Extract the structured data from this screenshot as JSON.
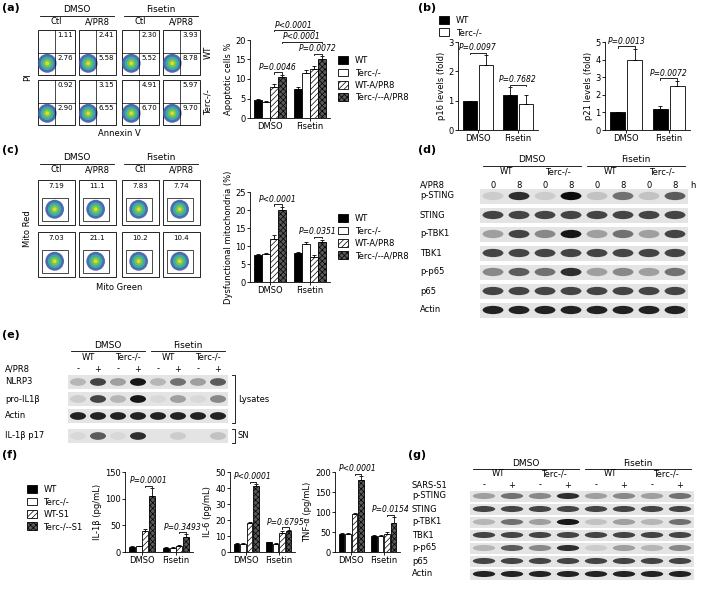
{
  "panel_labels": [
    "(a)",
    "(b)",
    "(c)",
    "(d)",
    "(e)",
    "(f)",
    "(g)"
  ],
  "chart_data": [
    {
      "type": "bar",
      "ylabel": "Apoptotic cells %",
      "categories": [
        "DMSO",
        "Fisetin"
      ],
      "ylim": [
        0,
        20
      ],
      "yticks": [
        0,
        5,
        10,
        15,
        20
      ],
      "legend": "right",
      "series": [
        {
          "name": "WT",
          "color": "#000000",
          "values": [
            4.5,
            7.5
          ],
          "errors": [
            0.5,
            0.5
          ]
        },
        {
          "name": "Terc-/-",
          "color": "#ffffff",
          "values": [
            4.0,
            11.5
          ],
          "errors": [
            0.4,
            0.8
          ]
        },
        {
          "name": "WT-A/PR8",
          "color": "#ffffff",
          "values": [
            8.0,
            12.5
          ],
          "errors": [
            0.8,
            0.8
          ]
        },
        {
          "name": "Terc-/--A/PR8",
          "color": "#595959",
          "values": [
            10.5,
            15.0
          ],
          "errors": [
            0.6,
            0.9
          ]
        }
      ],
      "comparisons": [
        {
          "text": "P=0.0046",
          "from": {
            "category": "DMSO",
            "series": "WT-A/PR8"
          },
          "to": {
            "category": "DMSO",
            "series": "Terc-/--A/PR8"
          }
        },
        {
          "text": "P=0.0072",
          "from": {
            "category": "Fisetin",
            "series": "WT-A/PR8"
          },
          "to": {
            "category": "Fisetin",
            "series": "Terc-/--A/PR8"
          }
        },
        {
          "text": "P<0.0001",
          "from": {
            "category": "DMSO",
            "series": "Terc-/--A/PR8"
          },
          "to": {
            "category": "Fisetin",
            "series": "Terc-/--A/PR8"
          }
        },
        {
          "text": "P<0.0001",
          "from": {
            "category": "DMSO",
            "series": "WT-A/PR8"
          },
          "to": {
            "category": "Fisetin",
            "series": "WT-A/PR8"
          }
        }
      ]
    },
    {
      "type": "bar",
      "ylabel": "p16 levels (fold)",
      "categories": [
        "DMSO",
        "Fisetin"
      ],
      "ylim": [
        0,
        3
      ],
      "yticks": [
        0,
        1,
        2,
        3
      ],
      "legend": "top",
      "series": [
        {
          "name": "WT",
          "color": "#000000",
          "values": [
            1.0,
            1.2
          ],
          "errors": [
            0.0,
            0.25
          ]
        },
        {
          "name": "Terc-/-",
          "color": "#ffffff",
          "values": [
            2.2,
            0.9
          ],
          "errors": [
            0.35,
            0.3
          ]
        }
      ],
      "comparisons": [
        {
          "text": "P=0.0097",
          "from": {
            "category": "DMSO",
            "series": "WT"
          },
          "to": {
            "category": "DMSO",
            "series": "Terc-/-"
          }
        },
        {
          "text": "P=0.7682",
          "from": {
            "category": "Fisetin",
            "series": "WT"
          },
          "to": {
            "category": "Fisetin",
            "series": "Terc-/-"
          }
        }
      ]
    },
    {
      "type": "bar",
      "ylabel": "p21 levels (fold)",
      "categories": [
        "DMSO",
        "Fisetin"
      ],
      "ylim": [
        0,
        5
      ],
      "yticks": [
        0,
        1,
        2,
        3,
        4,
        5
      ],
      "series": [
        {
          "name": "WT",
          "color": "#000000",
          "values": [
            1.0,
            1.2
          ],
          "errors": [
            0.0,
            0.15
          ]
        },
        {
          "name": "Terc-/-",
          "color": "#ffffff",
          "values": [
            4.0,
            2.5
          ],
          "errors": [
            0.6,
            0.3
          ]
        }
      ],
      "comparisons": [
        {
          "text": "P=0.0013",
          "from": {
            "category": "DMSO",
            "series": "WT"
          },
          "to": {
            "category": "DMSO",
            "series": "Terc-/-"
          }
        },
        {
          "text": "P=0.0072",
          "from": {
            "category": "Fisetin",
            "series": "WT"
          },
          "to": {
            "category": "Fisetin",
            "series": "Terc-/-"
          }
        }
      ]
    },
    {
      "type": "bar",
      "ylabel": "Dysfunctional mitochondria (%)",
      "categories": [
        "DMSO",
        "Fisetin"
      ],
      "ylim": [
        0,
        25
      ],
      "yticks": [
        0,
        5,
        10,
        15,
        20,
        25
      ],
      "legend": "right",
      "series": [
        {
          "name": "WT",
          "color": "#000000",
          "values": [
            7.5,
            8.0
          ],
          "errors": [
            0.4,
            0.4
          ]
        },
        {
          "name": "Terc-/-",
          "color": "#ffffff",
          "values": [
            7.7,
            10.5
          ],
          "errors": [
            0.4,
            0.6
          ]
        },
        {
          "name": "WT-A/PR8",
          "color": "#ffffff",
          "values": [
            12.0,
            7.0
          ],
          "errors": [
            1.0,
            0.6
          ]
        },
        {
          "name": "Terc-/--A/PR8",
          "color": "#595959",
          "values": [
            20.0,
            11.0
          ],
          "errors": [
            0.8,
            0.8
          ]
        }
      ],
      "comparisons": [
        {
          "text": "P<0.0001",
          "from": {
            "category": "DMSO",
            "series": "WT-A/PR8"
          },
          "to": {
            "category": "DMSO",
            "series": "Terc-/--A/PR8"
          }
        },
        {
          "text": "P=0.0351",
          "from": {
            "category": "Fisetin",
            "series": "WT-A/PR8"
          },
          "to": {
            "category": "Fisetin",
            "series": "Terc-/--A/PR8"
          }
        }
      ]
    },
    {
      "type": "bar",
      "ylabel": "IL-1β (pg/mL)",
      "categories": [
        "DMSO",
        "Fisetin"
      ],
      "ylim": [
        0,
        150
      ],
      "yticks": [
        0,
        50,
        100,
        150
      ],
      "legend": "left",
      "series": [
        {
          "name": "WT",
          "color": "#000000",
          "values": [
            10,
            8
          ],
          "errors": [
            1,
            1
          ]
        },
        {
          "name": "Terc-/-",
          "color": "#ffffff",
          "values": [
            11,
            8
          ],
          "errors": [
            1,
            1
          ]
        },
        {
          "name": "WT-S1",
          "color": "#ffffff",
          "values": [
            40,
            12
          ],
          "errors": [
            3,
            2
          ]
        },
        {
          "name": "Terc-/--S1",
          "color": "#595959",
          "values": [
            105,
            28
          ],
          "errors": [
            15,
            5
          ]
        }
      ],
      "comparisons": [
        {
          "text": "P=0.0001",
          "from": {
            "category": "DMSO",
            "series": "WT-S1"
          },
          "to": {
            "category": "DMSO",
            "series": "Terc-/--S1"
          }
        },
        {
          "text": "P=0.3493",
          "from": {
            "category": "Fisetin",
            "series": "WT-S1"
          },
          "to": {
            "category": "Fisetin",
            "series": "Terc-/--S1"
          }
        }
      ]
    },
    {
      "type": "bar",
      "ylabel": "IL-6 (pg/mL)",
      "categories": [
        "DMSO",
        "Fisetin"
      ],
      "ylim": [
        0,
        50
      ],
      "yticks": [
        0,
        10,
        20,
        30,
        40,
        50
      ],
      "series": [
        {
          "name": "WT",
          "color": "#000000",
          "values": [
            5,
            6
          ],
          "errors": [
            0.5,
            0.5
          ]
        },
        {
          "name": "Terc-/-",
          "color": "#ffffff",
          "values": [
            5,
            5
          ],
          "errors": [
            0.5,
            0.5
          ]
        },
        {
          "name": "WT-S1",
          "color": "#ffffff",
          "values": [
            18,
            12
          ],
          "errors": [
            1,
            1
          ]
        },
        {
          "name": "Terc-/--S1",
          "color": "#595959",
          "values": [
            41,
            13
          ],
          "errors": [
            1.5,
            1
          ]
        }
      ],
      "comparisons": [
        {
          "text": "P<0.0001",
          "from": {
            "category": "DMSO",
            "series": "WT-S1"
          },
          "to": {
            "category": "DMSO",
            "series": "Terc-/--S1"
          }
        },
        {
          "text": "P=0.6795",
          "from": {
            "category": "Fisetin",
            "series": "WT-S1"
          },
          "to": {
            "category": "Fisetin",
            "series": "Terc-/--S1"
          }
        }
      ]
    },
    {
      "type": "bar",
      "ylabel": "TNF-α (pg/mL)",
      "categories": [
        "DMSO",
        "Fisetin"
      ],
      "ylim": [
        0,
        200
      ],
      "yticks": [
        0,
        50,
        100,
        150,
        200
      ],
      "series": [
        {
          "name": "WT",
          "color": "#000000",
          "values": [
            45,
            40
          ],
          "errors": [
            3,
            3
          ]
        },
        {
          "name": "Terc-/-",
          "color": "#ffffff",
          "values": [
            45,
            40
          ],
          "errors": [
            3,
            3
          ]
        },
        {
          "name": "WT-S1",
          "color": "#ffffff",
          "values": [
            95,
            45
          ],
          "errors": [
            3,
            4
          ]
        },
        {
          "name": "Terc-/--S1",
          "color": "#595959",
          "values": [
            180,
            72
          ],
          "errors": [
            10,
            15
          ]
        }
      ],
      "comparisons": [
        {
          "text": "P<0.0001",
          "from": {
            "category": "DMSO",
            "series": "WT-S1"
          },
          "to": {
            "category": "DMSO",
            "series": "Terc-/--S1"
          }
        },
        {
          "text": "P=0.0154",
          "from": {
            "category": "Fisetin",
            "series": "WT-S1"
          },
          "to": {
            "category": "Fisetin",
            "series": "Terc-/--S1"
          }
        }
      ]
    }
  ],
  "flow_cytometry": [
    {
      "xlabel": "Annexin V",
      "ylabel": "PI",
      "groups": [
        "DMSO",
        "Fisetin"
      ],
      "conditions": [
        "Ctl",
        "A/PR8"
      ],
      "rows": [
        "WT",
        "Terc-/-"
      ],
      "values": [
        [
          [
            "1.11",
            "2.76"
          ],
          [
            "2.41",
            "5.58"
          ],
          [
            "2.30",
            "5.52"
          ],
          [
            "3.93",
            "8.78"
          ]
        ],
        [
          [
            "0.92",
            "2.90"
          ],
          [
            "3.15",
            "6.55"
          ],
          [
            "4.91",
            "6.70"
          ],
          [
            "5.97",
            "9.70"
          ]
        ]
      ]
    },
    {
      "xlabel": "Mito Green",
      "ylabel": "Mito Red",
      "groups": [
        "DMSO",
        "Fisetin"
      ],
      "conditions": [
        "Ctl",
        "A/PR8"
      ],
      "values": [
        [
          [
            "7.19"
          ],
          [
            "11.1"
          ],
          [
            "7.83"
          ],
          [
            "7.74"
          ]
        ],
        [
          [
            "7.03"
          ],
          [
            "21.1"
          ],
          [
            "10.2"
          ],
          [
            "10.4"
          ]
        ]
      ]
    }
  ],
  "western_blots": [
    {
      "groups": [
        "DMSO",
        "Fisetin"
      ],
      "genotypes": [
        "WT",
        "Terc-/-"
      ],
      "treatment": "A/PR8",
      "lanes": [
        "0",
        "8",
        "0",
        "8",
        "0",
        "8",
        "0",
        "8"
      ],
      "unit": "h",
      "rows": [
        {
          "name": "p-STING",
          "bands": [
            0.1,
            0.8,
            0.1,
            0.95,
            0.15,
            0.5,
            0.15,
            0.6
          ]
        },
        {
          "name": "STING",
          "bands": [
            0.7,
            0.7,
            0.7,
            0.7,
            0.7,
            0.7,
            0.7,
            0.7
          ]
        },
        {
          "name": "p-TBK1",
          "bands": [
            0.3,
            0.7,
            0.4,
            0.9,
            0.3,
            0.5,
            0.3,
            0.7
          ]
        },
        {
          "name": "TBK1",
          "bands": [
            0.7,
            0.7,
            0.7,
            0.7,
            0.7,
            0.7,
            0.7,
            0.7
          ]
        },
        {
          "name": "p-p65",
          "bands": [
            0.4,
            0.6,
            0.5,
            0.8,
            0.3,
            0.4,
            0.3,
            0.5
          ]
        },
        {
          "name": "p65",
          "bands": [
            0.7,
            0.7,
            0.7,
            0.7,
            0.7,
            0.7,
            0.7,
            0.7
          ]
        },
        {
          "name": "Actin",
          "bands": [
            0.85,
            0.85,
            0.85,
            0.85,
            0.85,
            0.85,
            0.85,
            0.85
          ]
        }
      ]
    },
    {
      "groups": [
        "DMSO",
        "Fisetin"
      ],
      "genotypes": [
        "WT",
        "Terc-/-"
      ],
      "treatment": "A/PR8",
      "lanes": [
        "-",
        "+",
        "-",
        "+",
        "-",
        "+",
        "-",
        "+"
      ],
      "rows": [
        {
          "name": "NLRP3",
          "bands": [
            0.2,
            0.7,
            0.3,
            0.9,
            0.2,
            0.5,
            0.3,
            0.6
          ]
        },
        {
          "name": "pro-IL1β",
          "bands": [
            0.1,
            0.7,
            0.2,
            0.9,
            0.05,
            0.3,
            0.05,
            0.4
          ]
        },
        {
          "name": "Actin",
          "bands": [
            0.85,
            0.85,
            0.85,
            0.85,
            0.85,
            0.85,
            0.85,
            0.85
          ]
        },
        {
          "name": "IL-1β p17",
          "bands": [
            0.05,
            0.6,
            0.05,
            0.8,
            0.0,
            0.1,
            0.0,
            0.15
          ]
        }
      ],
      "brackets": [
        {
          "text": "Lysates",
          "rows": [
            "NLRP3",
            "pro-IL1β",
            "Actin"
          ]
        },
        {
          "text": "SN",
          "rows": [
            "IL-1β p17"
          ]
        }
      ]
    },
    {
      "groups": [
        "DMSO",
        "Fisetin"
      ],
      "genotypes": [
        "WT",
        "Terc-/-"
      ],
      "treatment": "SARS-S1",
      "lanes": [
        "-",
        "+",
        "-",
        "+",
        "-",
        "+",
        "-",
        "+"
      ],
      "rows": [
        {
          "name": "p-STING",
          "bands": [
            0.3,
            0.5,
            0.4,
            0.8,
            0.3,
            0.4,
            0.3,
            0.5
          ]
        },
        {
          "name": "STING",
          "bands": [
            0.7,
            0.7,
            0.7,
            0.7,
            0.7,
            0.7,
            0.7,
            0.7
          ]
        },
        {
          "name": "p-TBK1",
          "bands": [
            0.2,
            0.5,
            0.3,
            0.9,
            0.15,
            0.3,
            0.2,
            0.5
          ]
        },
        {
          "name": "TBK1",
          "bands": [
            0.7,
            0.7,
            0.7,
            0.7,
            0.7,
            0.7,
            0.7,
            0.7
          ]
        },
        {
          "name": "p-p65",
          "bands": [
            0.2,
            0.6,
            0.4,
            0.8,
            0.1,
            0.3,
            0.2,
            0.4
          ]
        },
        {
          "name": "p65",
          "bands": [
            0.7,
            0.7,
            0.7,
            0.7,
            0.7,
            0.7,
            0.7,
            0.7
          ]
        },
        {
          "name": "Actin",
          "bands": [
            0.85,
            0.85,
            0.85,
            0.85,
            0.85,
            0.85,
            0.85,
            0.85
          ]
        }
      ]
    }
  ]
}
